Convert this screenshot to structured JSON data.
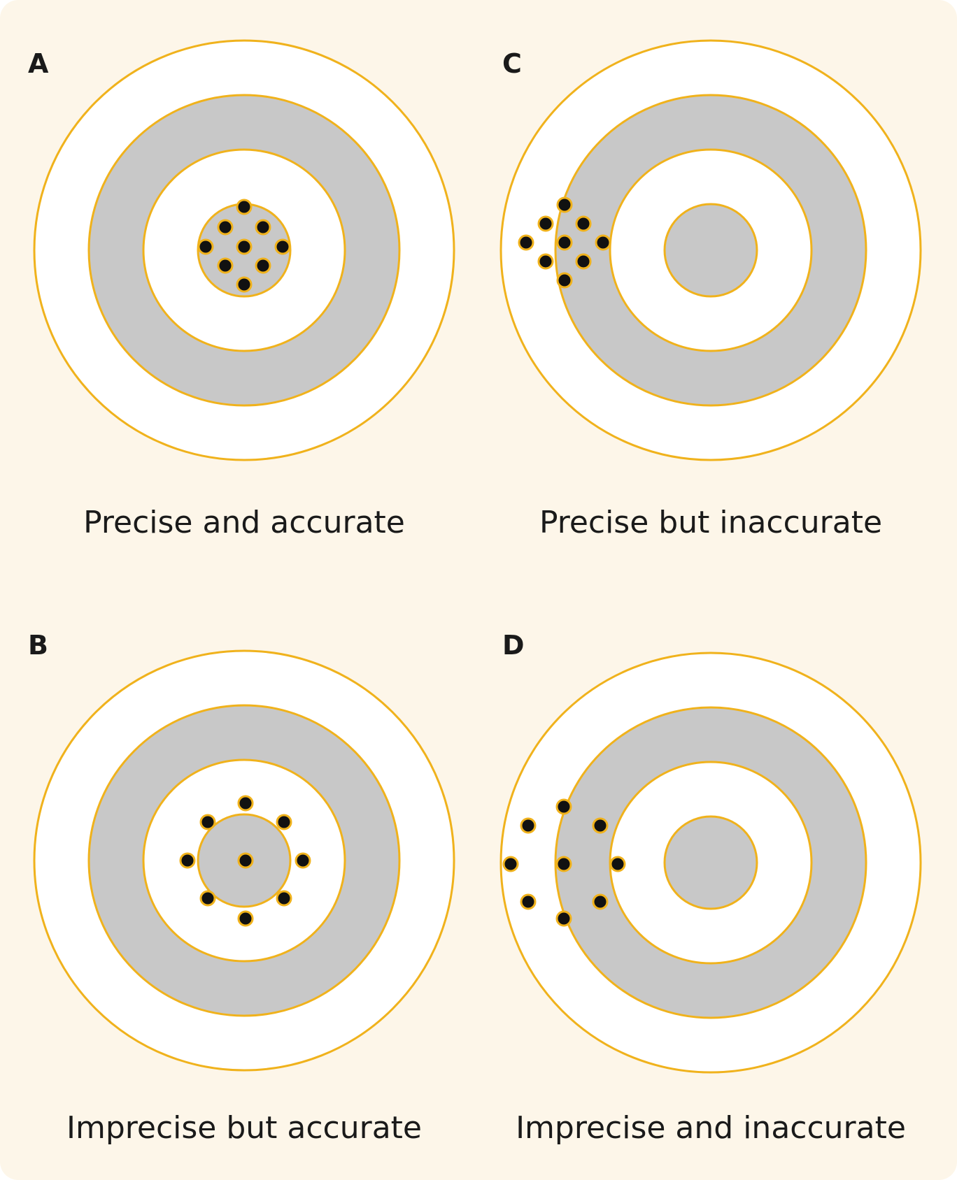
{
  "colors": {
    "background": "#fdf6e9",
    "ring_outline": "#f0b21c",
    "ring_white": "#ffffff",
    "ring_gray": "#c8c8c8",
    "shot_fill": "#111111",
    "text": "#1a1a1a"
  },
  "panels": [
    {
      "letter": "A",
      "caption": "Precise and accurate"
    },
    {
      "letter": "C",
      "caption": "Precise but inaccurate"
    },
    {
      "letter": "B",
      "caption": "Imprecise but accurate"
    },
    {
      "letter": "D",
      "caption": "Imprecise and inaccurate"
    }
  ]
}
